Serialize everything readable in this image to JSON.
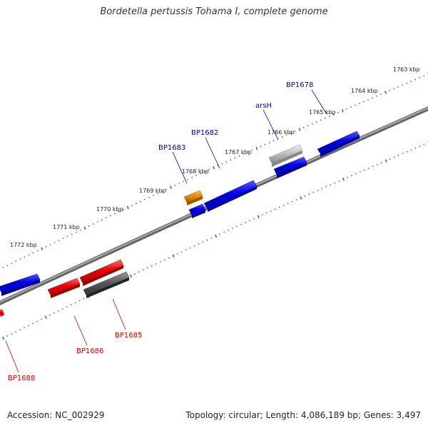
{
  "title": "Bordetella pertussis Tohama I, complete genome",
  "footer": {
    "accession": "Accession: NC_002929",
    "stats": "Topology: circular; Length: 4,086,189 bp; Genes: 3,497"
  },
  "colors": {
    "forward_gene": "#0000ee",
    "reverse_gene": "#ee0000",
    "orange_gene": "#ee8800",
    "light_gene": "#bbbbbb",
    "dark_gene": "#555555",
    "backbone": "#888888",
    "tick": "#228822",
    "forward_label": "#000099",
    "reverse_label": "#cc0000"
  },
  "ticks": [
    "1763 kbp",
    "1764 kbp",
    "1765 kbp",
    "1766 kbp",
    "1767 kbp",
    "1768 kbp",
    "1769 kbp",
    "1770 kbp",
    "1771 kbp",
    "1772 kbp"
  ],
  "gene_labels": {
    "forward": [
      "BP1678",
      "arsH",
      "BP1682",
      "BP1683"
    ],
    "reverse": [
      "BP1685",
      "BP1686",
      "BP1688"
    ]
  }
}
